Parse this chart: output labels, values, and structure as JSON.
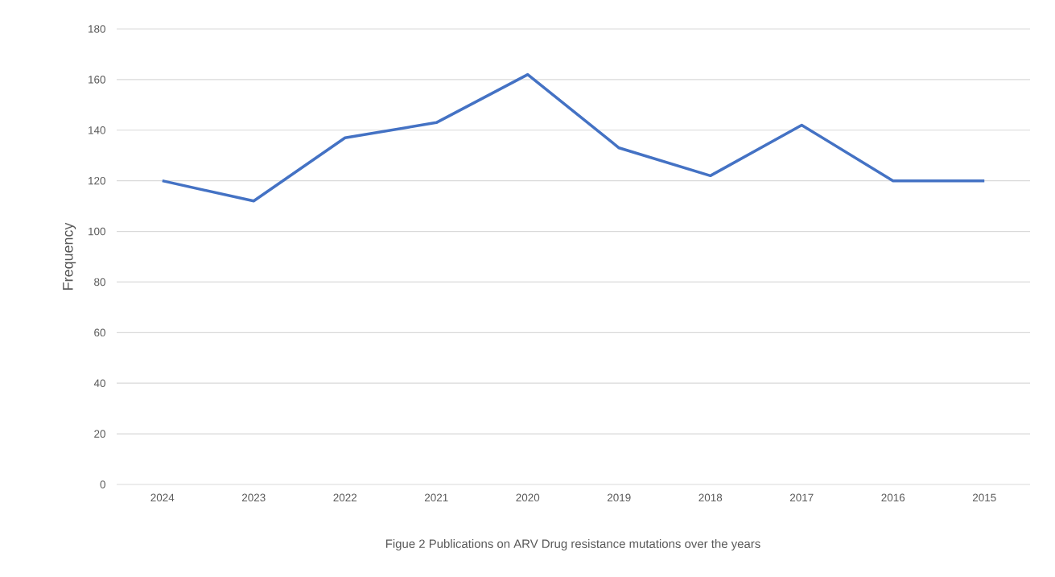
{
  "chart_data": {
    "type": "line",
    "ylabel": "Frequency",
    "categories": [
      "2024",
      "2023",
      "2022",
      "2021",
      "2020",
      "2019",
      "2018",
      "2017",
      "2016",
      "2015"
    ],
    "series": [
      {
        "color": "#4472c4",
        "values": [
          120,
          112,
          137,
          143,
          162,
          133,
          122,
          142,
          120,
          120
        ]
      }
    ],
    "ylim": [
      0,
      180
    ],
    "yticks": [
      0,
      20,
      40,
      60,
      80,
      100,
      120,
      140,
      160,
      180
    ],
    "grid": "y",
    "marker": "none",
    "line_style": "solid",
    "annotations": [
      "Figue 2 Publications on ARV Drug resistance mutations over the years"
    ]
  }
}
